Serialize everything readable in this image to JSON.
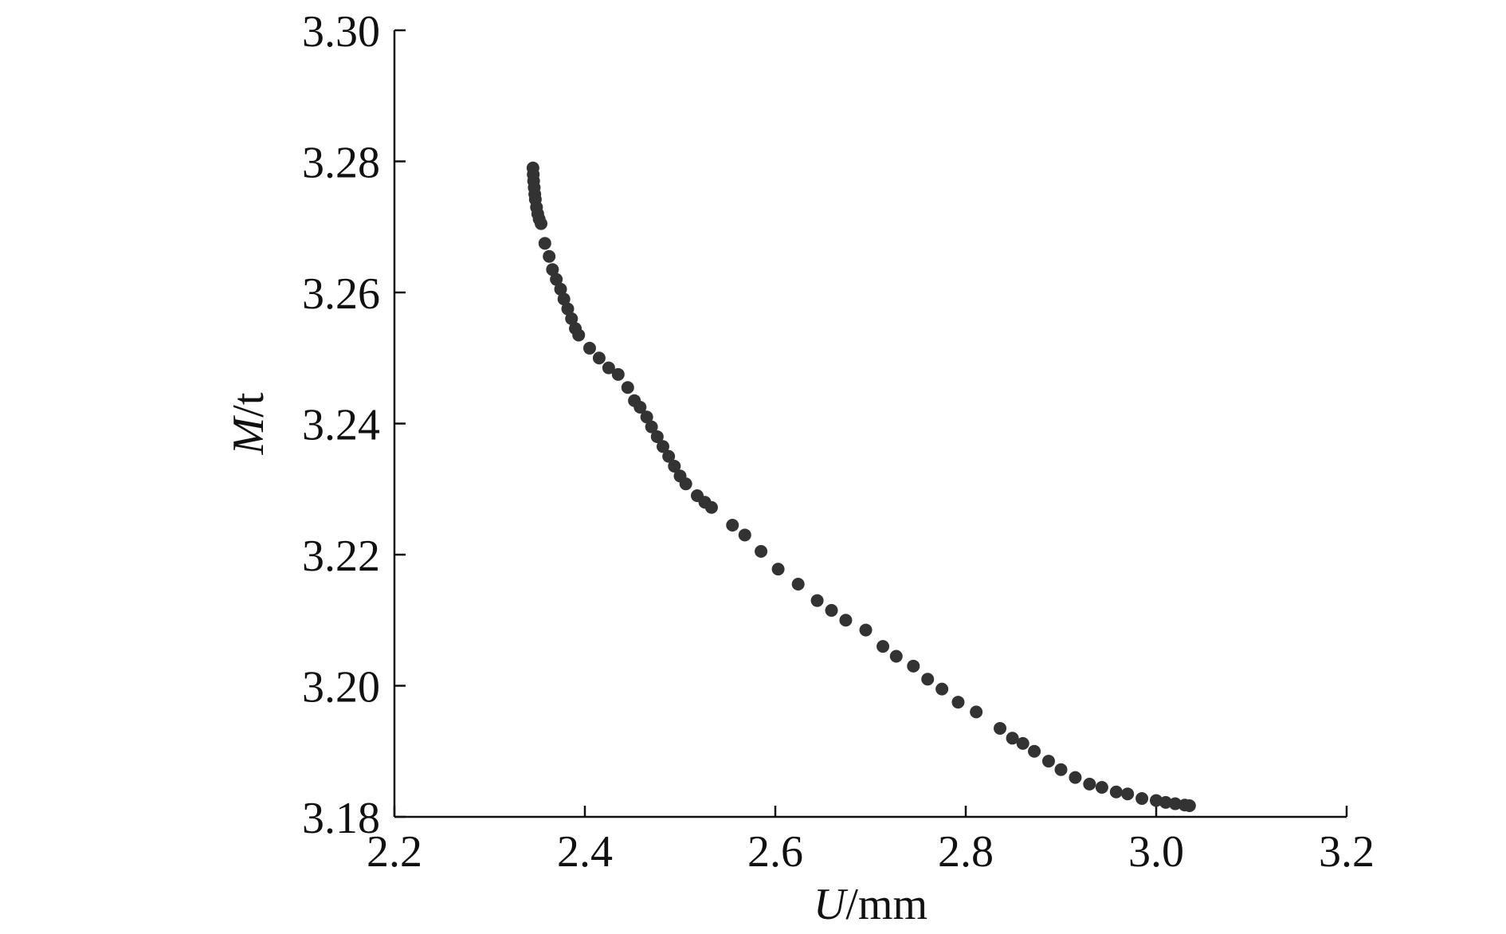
{
  "chart_data": {
    "type": "scatter",
    "title": "",
    "xlabel": {
      "var": "U",
      "unit": "/mm"
    },
    "ylabel": {
      "var": "M",
      "unit": "/t"
    },
    "xlim": [
      2.2,
      3.2
    ],
    "ylim": [
      3.18,
      3.3
    ],
    "xticks": [
      "2.2",
      "2.4",
      "2.6",
      "2.8",
      "3.0",
      "3.2"
    ],
    "yticks": [
      "3.18",
      "3.20",
      "3.22",
      "3.24",
      "3.26",
      "3.28",
      "3.30"
    ],
    "grid": false,
    "legend": "none",
    "point_color": "#333333",
    "series": [
      {
        "values": [
          [
            2.3455,
            3.279
          ],
          [
            2.3458,
            3.278
          ],
          [
            2.3462,
            3.277
          ],
          [
            2.3468,
            3.276
          ],
          [
            2.3474,
            3.275
          ],
          [
            2.348,
            3.2742
          ],
          [
            2.3492,
            3.273
          ],
          [
            2.3505,
            3.272
          ],
          [
            2.352,
            3.2712
          ],
          [
            2.354,
            3.2705
          ],
          [
            2.358,
            3.2675
          ],
          [
            2.3625,
            3.2655
          ],
          [
            2.366,
            3.2635
          ],
          [
            2.37,
            3.262
          ],
          [
            2.3745,
            3.2605
          ],
          [
            2.378,
            3.259
          ],
          [
            2.382,
            3.2575
          ],
          [
            2.386,
            3.256
          ],
          [
            2.39,
            3.2545
          ],
          [
            2.3935,
            3.2535
          ],
          [
            2.405,
            3.2515
          ],
          [
            2.415,
            3.25
          ],
          [
            2.425,
            3.2485
          ],
          [
            2.435,
            3.2475
          ],
          [
            2.445,
            3.2455
          ],
          [
            2.452,
            3.2435
          ],
          [
            2.458,
            3.2425
          ],
          [
            2.465,
            3.241
          ],
          [
            2.47,
            3.2395
          ],
          [
            2.476,
            3.238
          ],
          [
            2.482,
            3.2365
          ],
          [
            2.488,
            3.235
          ],
          [
            2.494,
            3.2335
          ],
          [
            2.5,
            3.232
          ],
          [
            2.506,
            3.2308
          ],
          [
            2.518,
            3.229
          ],
          [
            2.526,
            3.228
          ],
          [
            2.533,
            3.2272
          ],
          [
            2.555,
            3.2245
          ],
          [
            2.568,
            3.223
          ],
          [
            2.585,
            3.2205
          ],
          [
            2.603,
            3.2178
          ],
          [
            2.624,
            3.2155
          ],
          [
            2.644,
            3.213
          ],
          [
            2.659,
            3.2115
          ],
          [
            2.674,
            3.21
          ],
          [
            2.695,
            3.2085
          ],
          [
            2.713,
            3.206
          ],
          [
            2.727,
            3.2045
          ],
          [
            2.745,
            3.203
          ],
          [
            2.76,
            3.201
          ],
          [
            2.775,
            3.1995
          ],
          [
            2.792,
            3.1975
          ],
          [
            2.811,
            3.196
          ],
          [
            2.836,
            3.1935
          ],
          [
            2.849,
            3.192
          ],
          [
            2.86,
            3.1912
          ],
          [
            2.872,
            3.19
          ],
          [
            2.887,
            3.1885
          ],
          [
            2.9,
            3.1872
          ],
          [
            2.915,
            3.186
          ],
          [
            2.93,
            3.185
          ],
          [
            2.943,
            3.1845
          ],
          [
            2.958,
            3.1838
          ],
          [
            2.97,
            3.1835
          ],
          [
            2.985,
            3.1828
          ],
          [
            3.0,
            3.1825
          ],
          [
            3.01,
            3.1822
          ],
          [
            3.02,
            3.182
          ],
          [
            3.03,
            3.1818
          ],
          [
            3.035,
            3.1817
          ]
        ]
      }
    ]
  }
}
